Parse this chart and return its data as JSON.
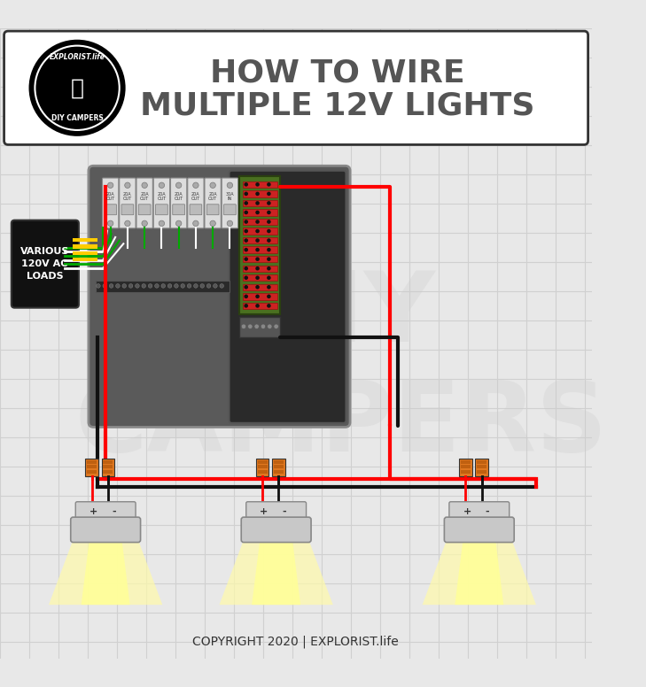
{
  "title_line1": "HOW TO WIRE",
  "title_line2": "MULTIPLE 12V LIGHTS",
  "copyright": "COPYRIGHT 2020 | EXPLORIST.life",
  "bg_color": "#e8e8e8",
  "grid_color": "#d0d0d0",
  "panel_bg": "#5a5a5a",
  "panel_dark": "#2a2a2a",
  "header_box_color": "#ffffff",
  "black_box_color": "#111111",
  "various_loads_text": "VARIOUS\n120V AC\nLOADS",
  "wire_red": "#ff0000",
  "wire_black": "#111111",
  "wire_green": "#00aa00",
  "wire_white": "#ffffff",
  "connector_orange": "#e07820",
  "light_yellow": "#fffaaa",
  "breaker_color": "#cccccc",
  "terminal_green": "#4a7a20",
  "terminal_red": "#cc2222"
}
